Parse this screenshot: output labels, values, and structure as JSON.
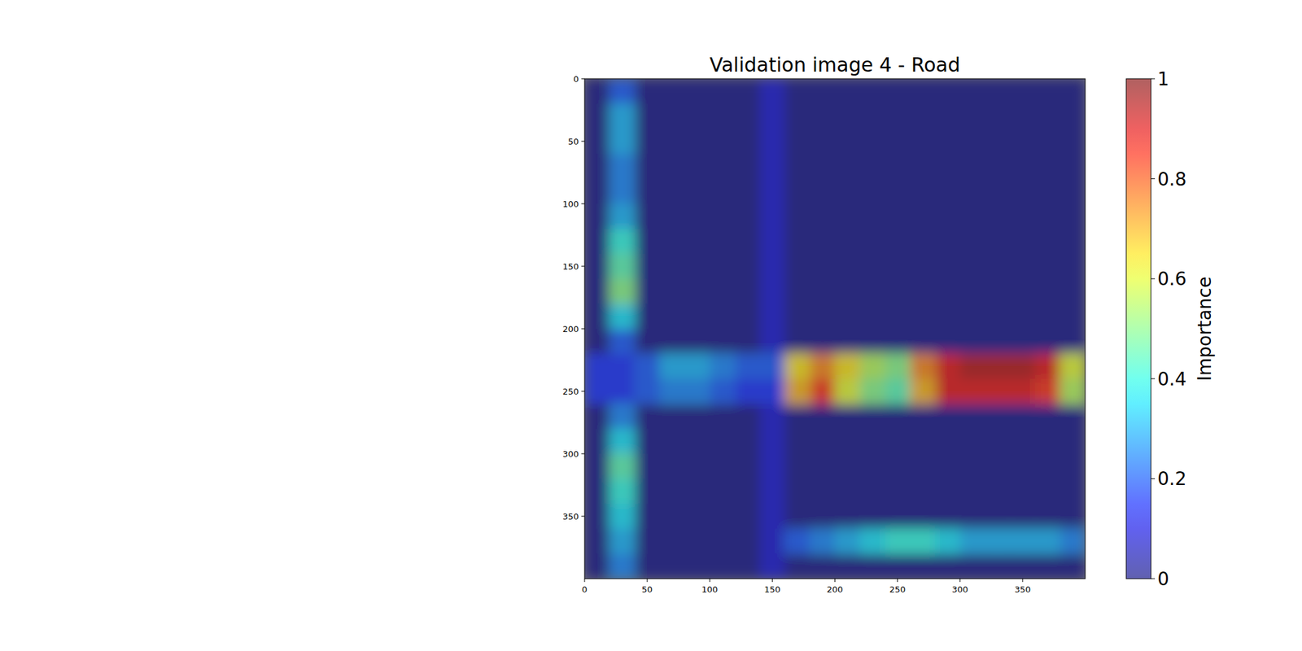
{
  "chart_data": {
    "type": "heatmap",
    "title": "Validation image 4 - Road",
    "xlim": [
      0,
      400
    ],
    "ylim": [
      400,
      0
    ],
    "xticks": [
      0,
      50,
      100,
      150,
      200,
      250,
      300,
      350
    ],
    "yticks": [
      0,
      50,
      100,
      150,
      200,
      250,
      300,
      350
    ],
    "colorbar": {
      "label": "Importance",
      "range": [
        0,
        1
      ],
      "ticks": [
        0,
        0.2,
        0.4,
        0.6,
        0.8,
        1
      ]
    },
    "cells": [
      [
        0,
        0.2,
        0,
        0,
        0,
        0,
        0,
        0.08,
        0,
        0,
        0,
        0,
        0,
        0,
        0,
        0,
        0,
        0,
        0,
        0
      ],
      [
        0,
        0.3,
        0,
        0,
        0,
        0,
        0,
        0.08,
        0,
        0,
        0,
        0,
        0,
        0,
        0,
        0,
        0,
        0,
        0,
        0
      ],
      [
        0,
        0.3,
        0,
        0,
        0,
        0,
        0,
        0.08,
        0,
        0,
        0,
        0,
        0,
        0,
        0,
        0,
        0,
        0,
        0,
        0
      ],
      [
        0,
        0.25,
        0,
        0,
        0,
        0,
        0,
        0.08,
        0,
        0,
        0,
        0,
        0,
        0,
        0,
        0,
        0,
        0,
        0,
        0
      ],
      [
        0,
        0.25,
        0,
        0,
        0,
        0,
        0,
        0.08,
        0,
        0,
        0,
        0,
        0,
        0,
        0,
        0,
        0,
        0,
        0,
        0
      ],
      [
        0,
        0.3,
        0,
        0,
        0,
        0,
        0,
        0.08,
        0,
        0,
        0,
        0,
        0,
        0,
        0,
        0,
        0,
        0,
        0,
        0
      ],
      [
        0,
        0.4,
        0,
        0,
        0,
        0,
        0,
        0.08,
        0,
        0,
        0,
        0,
        0,
        0,
        0,
        0,
        0,
        0,
        0,
        0
      ],
      [
        0,
        0.45,
        0,
        0,
        0,
        0,
        0,
        0.08,
        0,
        0,
        0,
        0,
        0,
        0,
        0,
        0,
        0,
        0,
        0,
        0
      ],
      [
        0,
        0.5,
        0,
        0,
        0,
        0,
        0,
        0.08,
        0,
        0,
        0,
        0,
        0,
        0,
        0,
        0,
        0,
        0,
        0,
        0
      ],
      [
        0,
        0.35,
        0,
        0,
        0,
        0,
        0,
        0.08,
        0,
        0,
        0,
        0,
        0,
        0,
        0,
        0,
        0,
        0,
        0,
        0
      ],
      [
        0,
        0.2,
        0,
        0,
        0,
        0,
        0,
        0.08,
        0,
        0,
        0,
        0,
        0,
        0,
        0,
        0,
        0,
        0,
        0,
        0
      ],
      [
        0.15,
        0.15,
        0.2,
        0.3,
        0.3,
        0.25,
        0.2,
        0.2,
        0.65,
        0.75,
        0.65,
        0.55,
        0.5,
        0.75,
        0.9,
        0.95,
        0.95,
        0.95,
        0.9,
        0.6
      ],
      [
        0.15,
        0.15,
        0.2,
        0.25,
        0.25,
        0.2,
        0.15,
        0.15,
        0.7,
        0.85,
        0.6,
        0.5,
        0.45,
        0.7,
        0.9,
        0.9,
        0.9,
        0.9,
        0.85,
        0.55
      ],
      [
        0,
        0.25,
        0,
        0,
        0,
        0,
        0,
        0.08,
        0,
        0,
        0,
        0,
        0,
        0,
        0,
        0,
        0,
        0,
        0,
        0
      ],
      [
        0,
        0.35,
        0,
        0,
        0,
        0,
        0,
        0.08,
        0,
        0,
        0,
        0,
        0,
        0,
        0,
        0,
        0,
        0,
        0,
        0
      ],
      [
        0,
        0.45,
        0,
        0,
        0,
        0,
        0,
        0.08,
        0,
        0,
        0,
        0,
        0,
        0,
        0,
        0,
        0,
        0,
        0,
        0
      ],
      [
        0,
        0.4,
        0,
        0,
        0,
        0,
        0,
        0.08,
        0,
        0,
        0,
        0,
        0,
        0,
        0,
        0,
        0,
        0,
        0,
        0
      ],
      [
        0,
        0.35,
        0,
        0,
        0,
        0,
        0,
        0.08,
        0,
        0,
        0,
        0,
        0,
        0,
        0,
        0,
        0,
        0,
        0,
        0
      ],
      [
        0,
        0.3,
        0,
        0,
        0,
        0,
        0,
        0.08,
        0.2,
        0.25,
        0.3,
        0.35,
        0.4,
        0.4,
        0.35,
        0.3,
        0.3,
        0.3,
        0.3,
        0.25
      ],
      [
        0,
        0.25,
        0,
        0,
        0,
        0,
        0,
        0.08,
        0,
        0,
        0,
        0,
        0,
        0,
        0,
        0,
        0,
        0,
        0,
        0
      ]
    ]
  }
}
